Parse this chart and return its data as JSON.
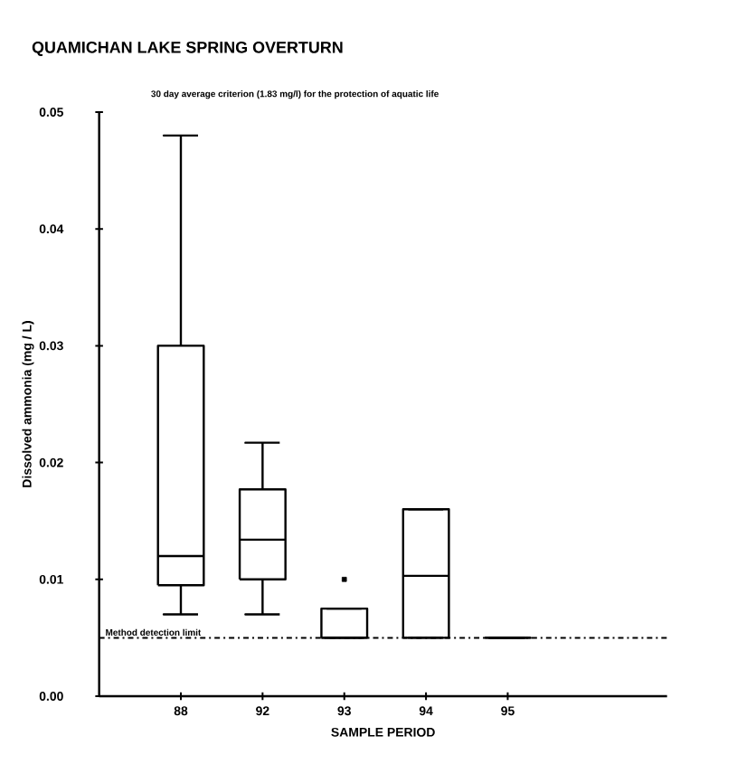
{
  "chart_data": {
    "type": "box",
    "title": "QUAMICHAN LAKE SPRING OVERTURN",
    "xlabel": "SAMPLE PERIOD",
    "ylabel": "Dissolved ammonia  (mg / L)",
    "categories": [
      "88",
      "92",
      "93",
      "94",
      "95"
    ],
    "color": "#000000",
    "boxes": [
      {
        "low": 0.007,
        "q1": 0.0095,
        "median": 0.012,
        "q3": 0.03,
        "high": 0.048
      },
      {
        "low": 0.007,
        "q1": 0.01,
        "median": 0.0134,
        "q3": 0.0177,
        "high": 0.0217
      },
      {
        "low": 0.005,
        "q1": 0.005,
        "median": 0.005,
        "q3": 0.0075,
        "high": 0.0075,
        "outliers": [
          0.01
        ]
      },
      {
        "low": 0.005,
        "q1": 0.005,
        "median": 0.0103,
        "q3": 0.016,
        "high": 0.016
      },
      {
        "low": 0.005,
        "q1": 0.005,
        "median": 0.005,
        "q3": 0.005,
        "high": 0.005
      }
    ],
    "ylim": [
      0,
      0.05
    ],
    "yticks": [
      {
        "value": 0,
        "label": "0.00"
      },
      {
        "value": 0.01,
        "label": "0.01"
      },
      {
        "value": 0.02,
        "label": "0.02"
      },
      {
        "value": 0.03,
        "label": "0.03"
      },
      {
        "value": 0.04,
        "label": "0.04"
      },
      {
        "value": 0.05,
        "label": "0.05"
      }
    ],
    "ref_lines": [
      {
        "axis": "y",
        "value": 0.005,
        "label": "Method detection limit",
        "line_style": "dashdot"
      }
    ],
    "annotations": [
      "30 day average criterion (1.83 mg/l) for the protection of aquatic life"
    ]
  }
}
